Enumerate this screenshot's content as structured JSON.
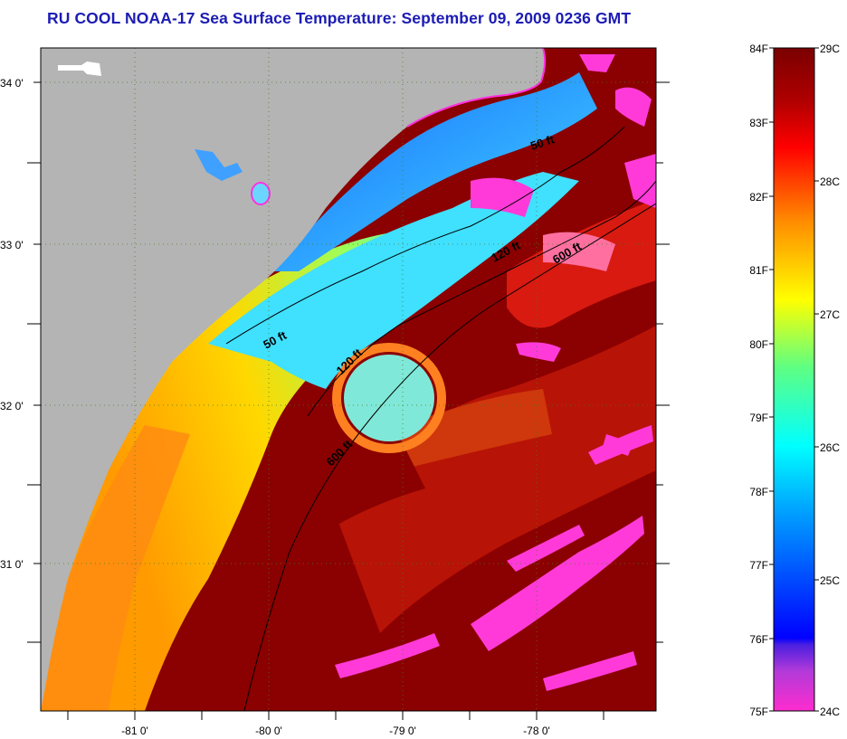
{
  "header": {
    "title": "RU COOL  NOAA-17  Sea Surface Temperature:  September 09, 2009 0236 GMT"
  },
  "map": {
    "lat_labels": [
      "34 0'",
      "33 0'",
      "32 0'",
      "31 0'"
    ],
    "lon_labels": [
      "-81 0'",
      "-80 0'",
      "-79 0'",
      "-78 0'"
    ],
    "contour_labels": [
      "50 ft",
      "50 ft",
      "120 ft",
      "120 ft",
      "600 ft",
      "600 ft"
    ]
  },
  "colorbar": {
    "fahrenheit_labels": [
      "84F",
      "83F",
      "82F",
      "81F",
      "80F",
      "79F",
      "78F",
      "77F",
      "76F",
      "75F"
    ],
    "celsius_labels": [
      "29C",
      "28C",
      "27C",
      "26C",
      "25C",
      "24C"
    ]
  },
  "colors": {
    "land": "#b4b4b4",
    "title": "#1c1cb4",
    "warm": "#8b0000",
    "hot": "#ff0000",
    "orange": "#ff8c00",
    "yellow": "#ffff00",
    "cyan": "#00ffff",
    "blue": "#0000ff",
    "magenta": "#ff20ff"
  }
}
